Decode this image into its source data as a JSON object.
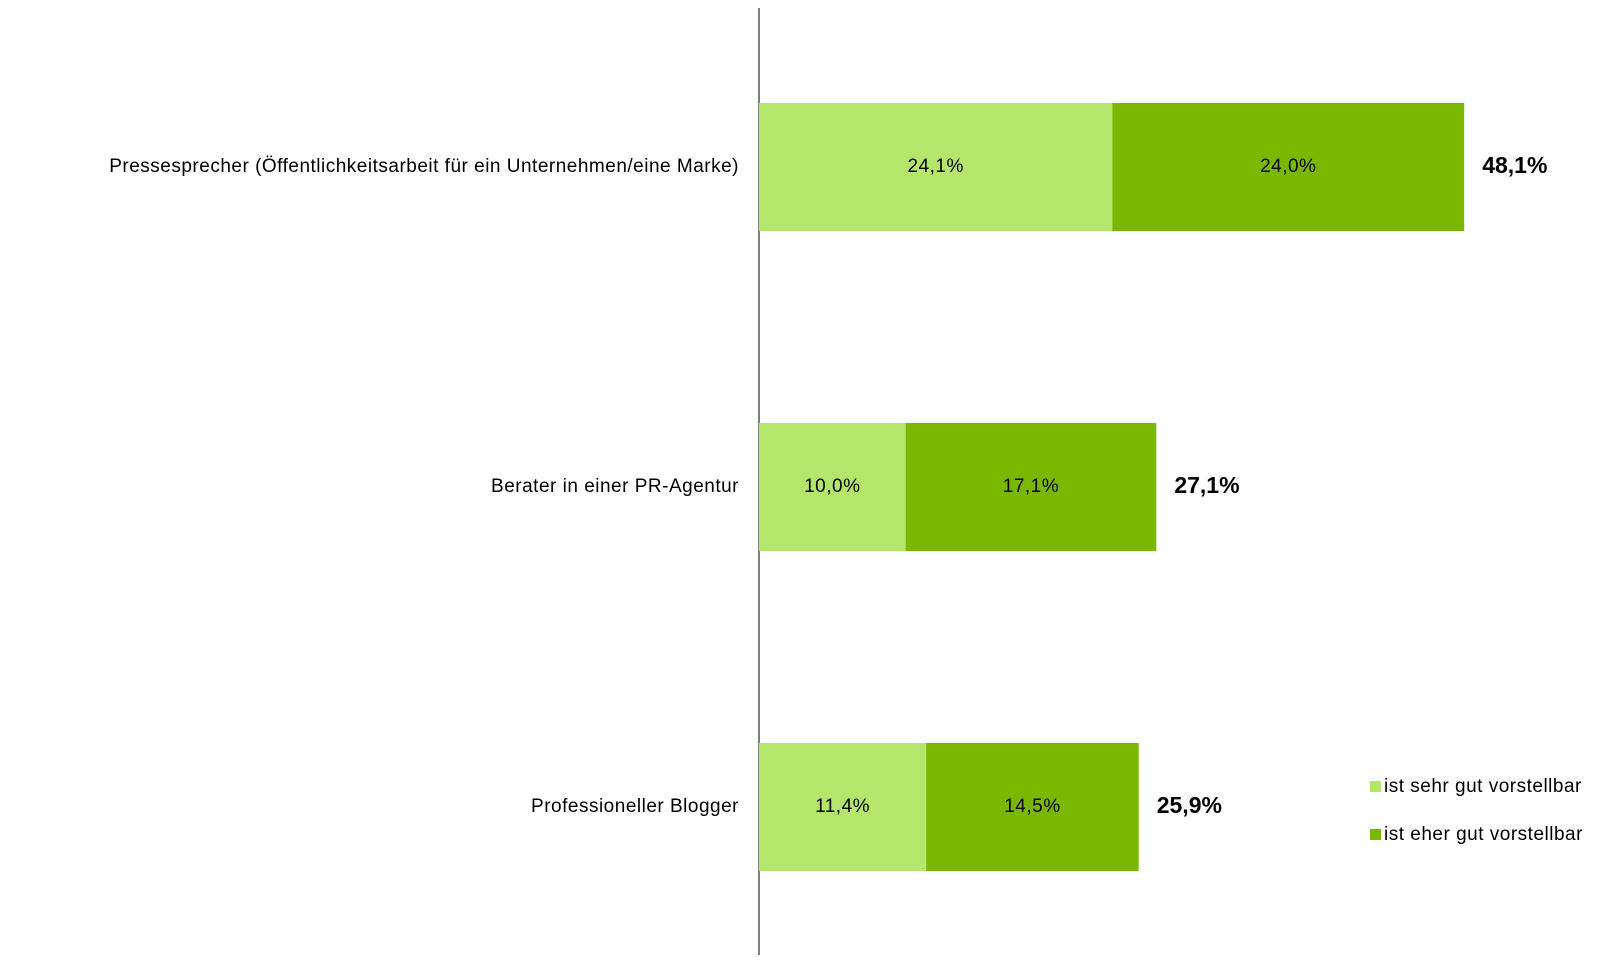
{
  "chart_data": {
    "type": "stacked_bar_horizontal",
    "categories": [
      "Pressesprecher (Öffentlichkeitsarbeit für ein Unternehmen/eine Marke)",
      "Berater in einer PR-Agentur",
      "Professioneller Blogger"
    ],
    "series": [
      {
        "name": "ist sehr gut vorstellbar",
        "color": "#b3e66b",
        "values": [
          24.1,
          10.0,
          11.4
        ],
        "value_labels": [
          "24,1%",
          "10,0%",
          "11,4%"
        ]
      },
      {
        "name": "ist eher gut vorstellbar",
        "color": "#7ab800",
        "values": [
          24.0,
          17.1,
          14.5
        ],
        "value_labels": [
          "24,0%",
          "17,1%",
          "14,5%"
        ]
      }
    ],
    "totals": [
      48.1,
      27.1,
      25.9
    ],
    "total_labels": [
      "48,1%",
      "27,1%",
      "25,9%"
    ],
    "xlim": [
      0,
      59
    ],
    "legend": "bottom-right"
  }
}
